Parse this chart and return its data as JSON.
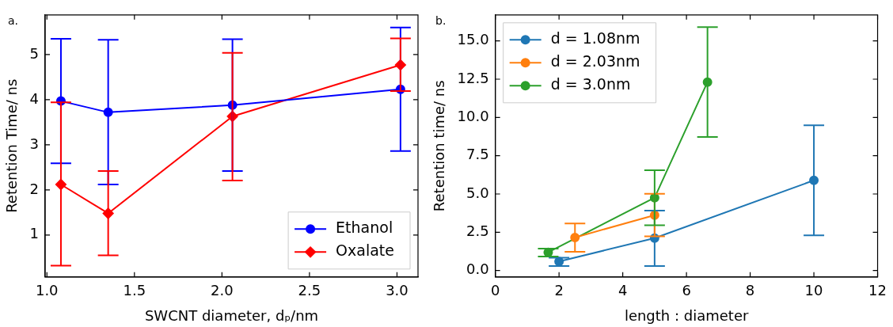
{
  "chart_data": [
    {
      "type": "line",
      "annotations": [
        "a."
      ],
      "xlabel": "SWCNT diameter, dₚ/nm",
      "ylabel": "Retention Time/ ns",
      "x": [
        1.08,
        1.35,
        2.06,
        3.02
      ],
      "series": [
        {
          "name": "Ethanol",
          "color": "#0000ff",
          "marker": "circle",
          "values": [
            3.97,
            3.72,
            3.88,
            4.23
          ],
          "errors": [
            [
              2.59,
              5.35
            ],
            [
              2.12,
              5.33
            ],
            [
              2.42,
              5.34
            ],
            [
              2.86,
              5.6
            ]
          ]
        },
        {
          "name": "Oxalate",
          "color": "#ff0000",
          "marker": "diamond",
          "values": [
            2.12,
            1.48,
            3.63,
            4.77
          ],
          "errors": [
            [
              0.32,
              3.94
            ],
            [
              0.55,
              2.42
            ],
            [
              2.21,
              5.04
            ],
            [
              4.19,
              5.36
            ]
          ]
        }
      ],
      "xlim": [
        0.99,
        3.12
      ],
      "xticks": [
        {
          "value": 1,
          "label": "1.0"
        },
        1.5,
        {
          "value": 2,
          "label": "2.0"
        },
        2.5,
        {
          "value": 3,
          "label": "3.0"
        }
      ],
      "ylim": [
        0.07,
        5.88
      ],
      "yticks": [
        1,
        2,
        3,
        4,
        5
      ],
      "grid": false,
      "legend": "bottom right"
    },
    {
      "type": "line",
      "annotations": [
        "b."
      ],
      "xlabel": "length : diameter",
      "ylabel": "Retention time/ ns",
      "series": [
        {
          "name": "d = 1.08nm",
          "color": "#1f77b4",
          "x": [
            2,
            5,
            10
          ],
          "values": [
            0.59,
            2.12,
            5.89
          ],
          "errors": [
            [
              0.29,
              0.84
            ],
            [
              0.29,
              3.91
            ],
            [
              2.3,
              9.49
            ]
          ]
        },
        {
          "name": "d = 2.03nm",
          "color": "#ff7f0e",
          "x": [
            2.5,
            5
          ],
          "values": [
            2.16,
            3.62
          ],
          "errors": [
            [
              1.23,
              3.07
            ],
            [
              2.23,
              5.01
            ]
          ]
        },
        {
          "name": "d = 3.0nm",
          "color": "#2ca02c",
          "x": [
            1.66,
            5,
            6.66
          ],
          "values": [
            1.19,
            4.76,
            12.31
          ],
          "errors": [
            [
              0.91,
              1.43
            ],
            [
              2.96,
              6.55
            ],
            [
              8.73,
              15.9
            ]
          ]
        }
      ],
      "marker": "circle",
      "xlim": [
        0,
        12
      ],
      "xticks": [
        0,
        2,
        4,
        6,
        8,
        10,
        12
      ],
      "ylim": [
        -0.42,
        16.7
      ],
      "yticks": [
        {
          "value": 0,
          "label": "0.0"
        },
        2.5,
        {
          "value": 5,
          "label": "5.0"
        },
        7.5,
        {
          "value": 10,
          "label": "10.0"
        },
        12.5,
        {
          "value": 15,
          "label": "15.0"
        }
      ],
      "grid": false,
      "legend": "top left"
    }
  ]
}
